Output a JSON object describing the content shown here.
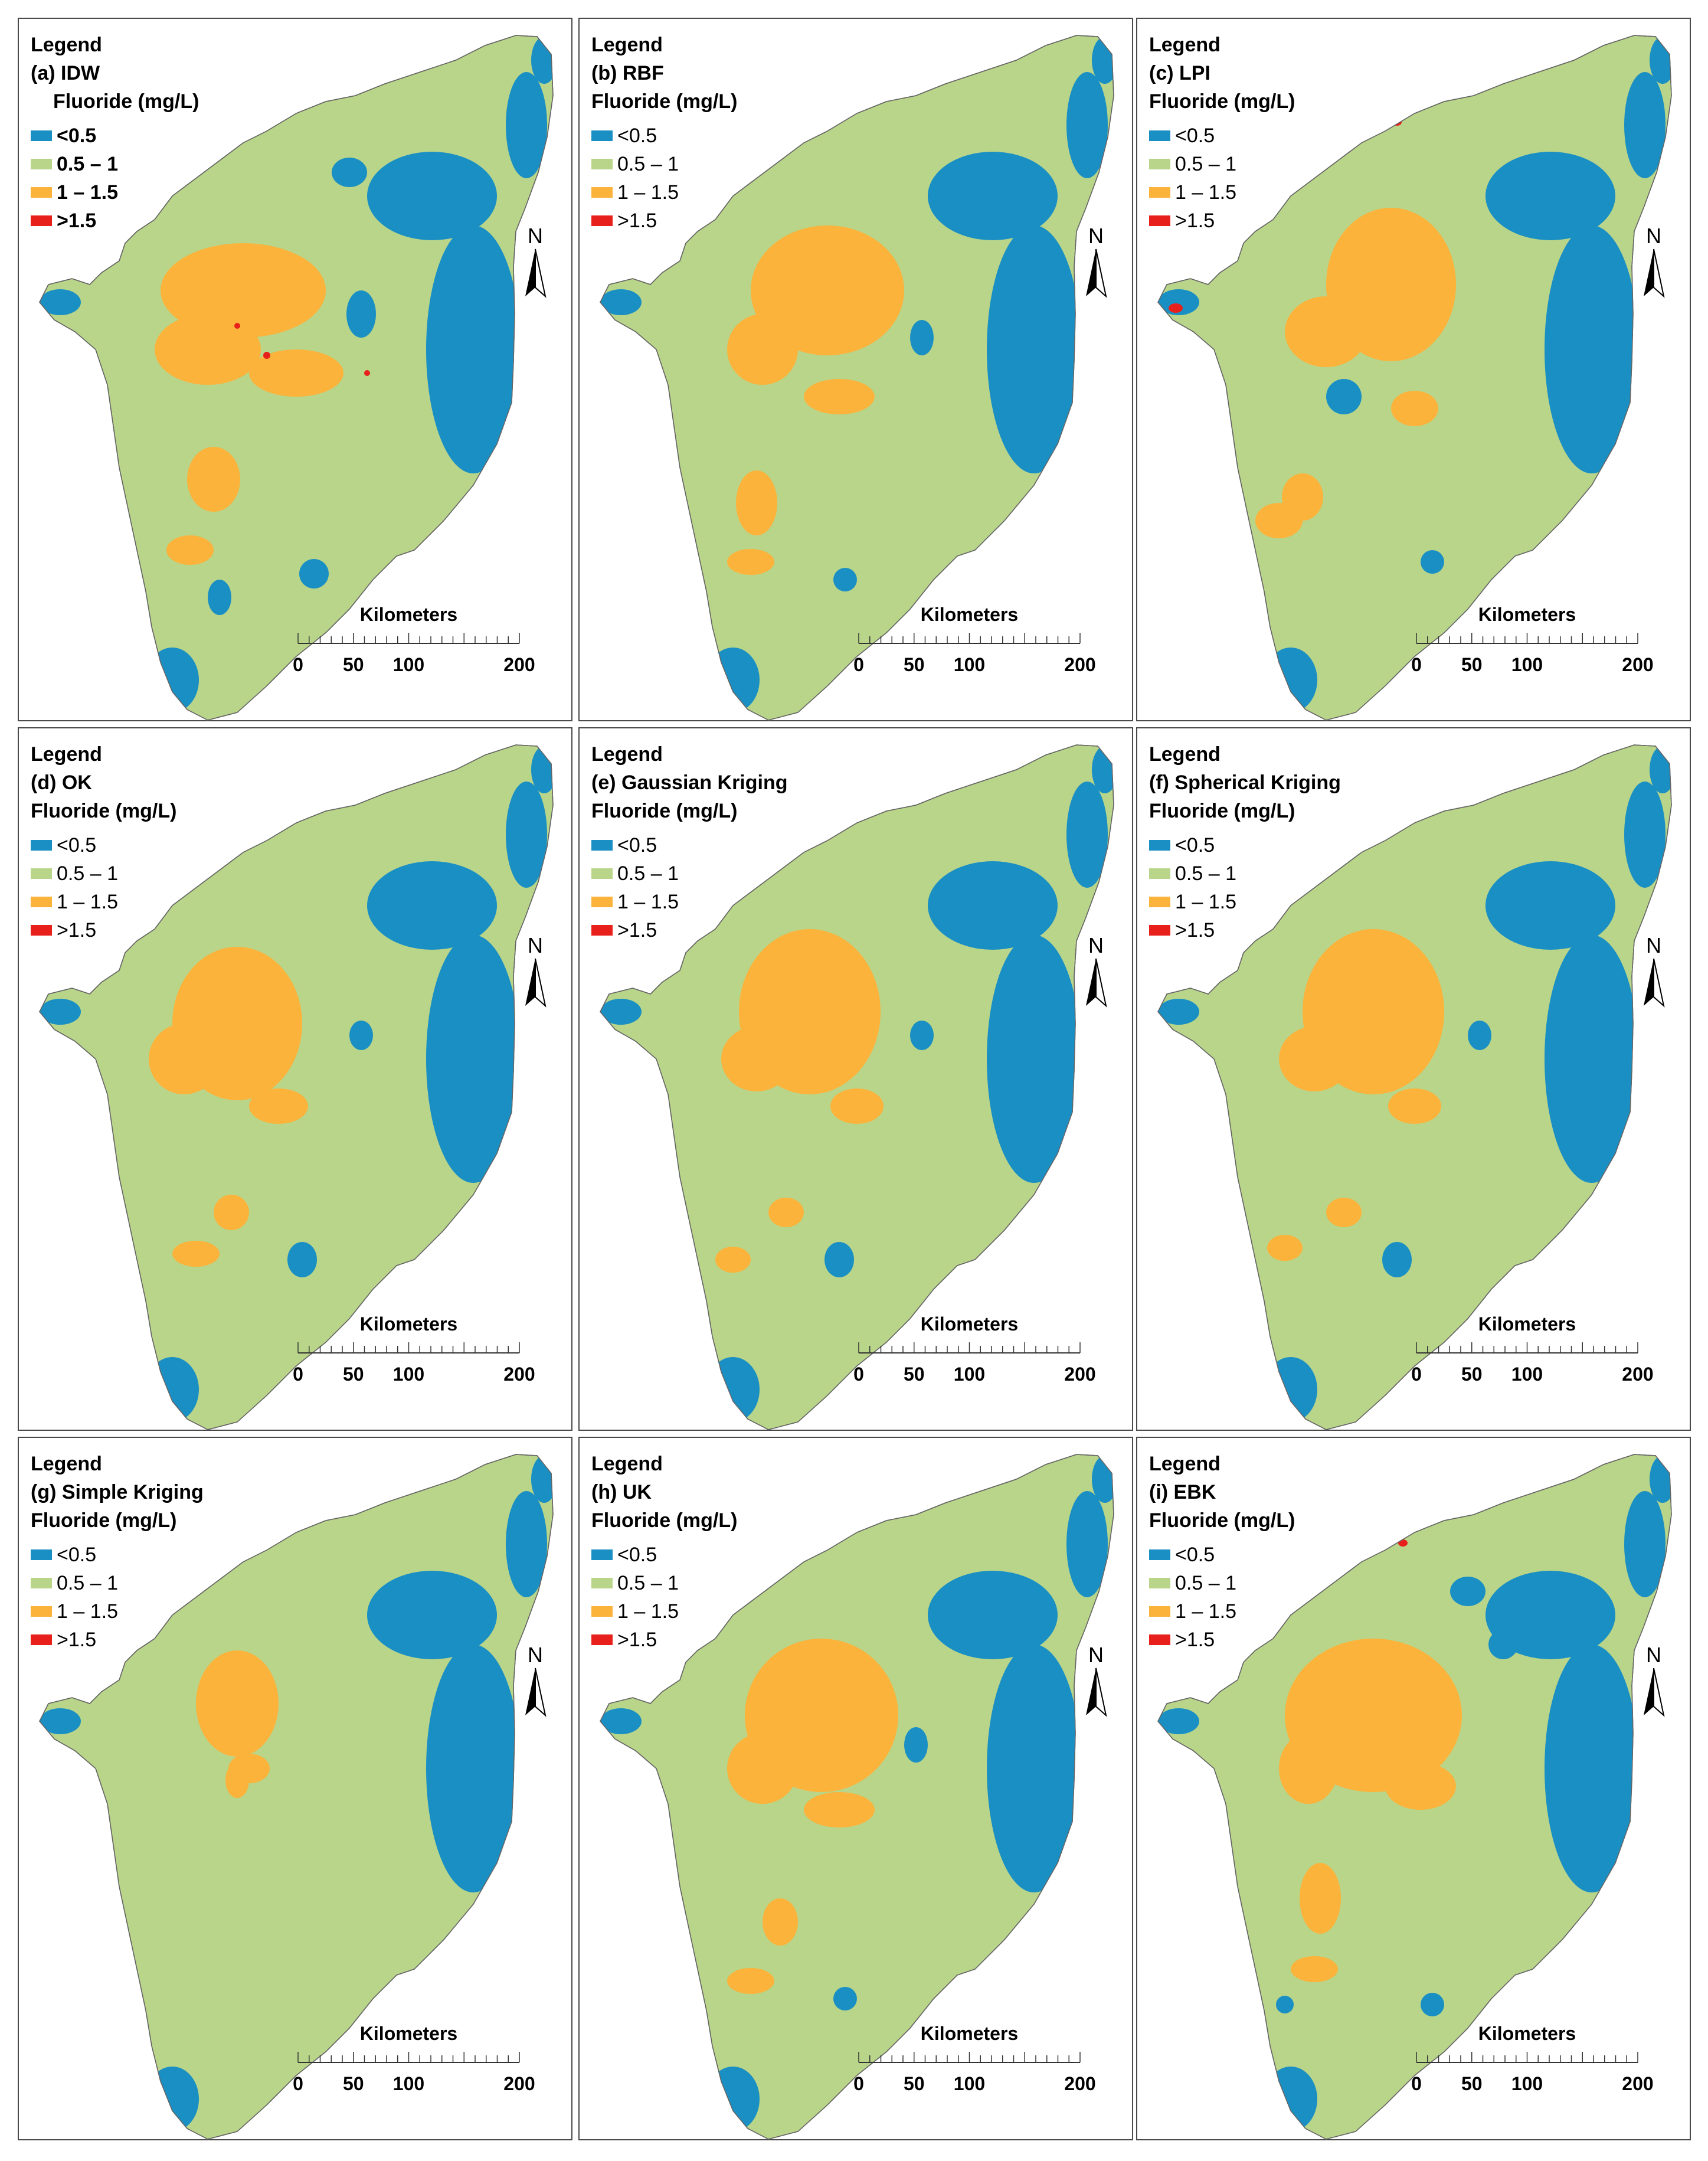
{
  "legend": {
    "heading": "Legend",
    "unit": "Fluoride (mg/L)",
    "classes": [
      {
        "label": "<0.5",
        "color": "#1a8fc4"
      },
      {
        "label": "0.5 – 1",
        "color": "#b9d58a"
      },
      {
        "label": "1 – 1.5",
        "color": "#fbb33b"
      },
      {
        "label": ">1.5",
        "color": "#e8201c"
      }
    ]
  },
  "north_label": "N",
  "scale_bar": {
    "title": "Kilometers",
    "ticks": [
      "0",
      "50",
      "100",
      "200"
    ]
  },
  "panels": [
    {
      "id": "a",
      "title": "(a) IDW"
    },
    {
      "id": "b",
      "title": "(b) RBF"
    },
    {
      "id": "c",
      "title": "(c) LPI"
    },
    {
      "id": "d",
      "title": "(d) OK"
    },
    {
      "id": "e",
      "title": "(e) Gaussian Kriging"
    },
    {
      "id": "f",
      "title": "(f) Spherical Kriging"
    },
    {
      "id": "g",
      "title": "(g) Simple Kriging"
    },
    {
      "id": "h",
      "title": "(h) UK"
    },
    {
      "id": "i",
      "title": "(i) EBK"
    }
  ]
}
